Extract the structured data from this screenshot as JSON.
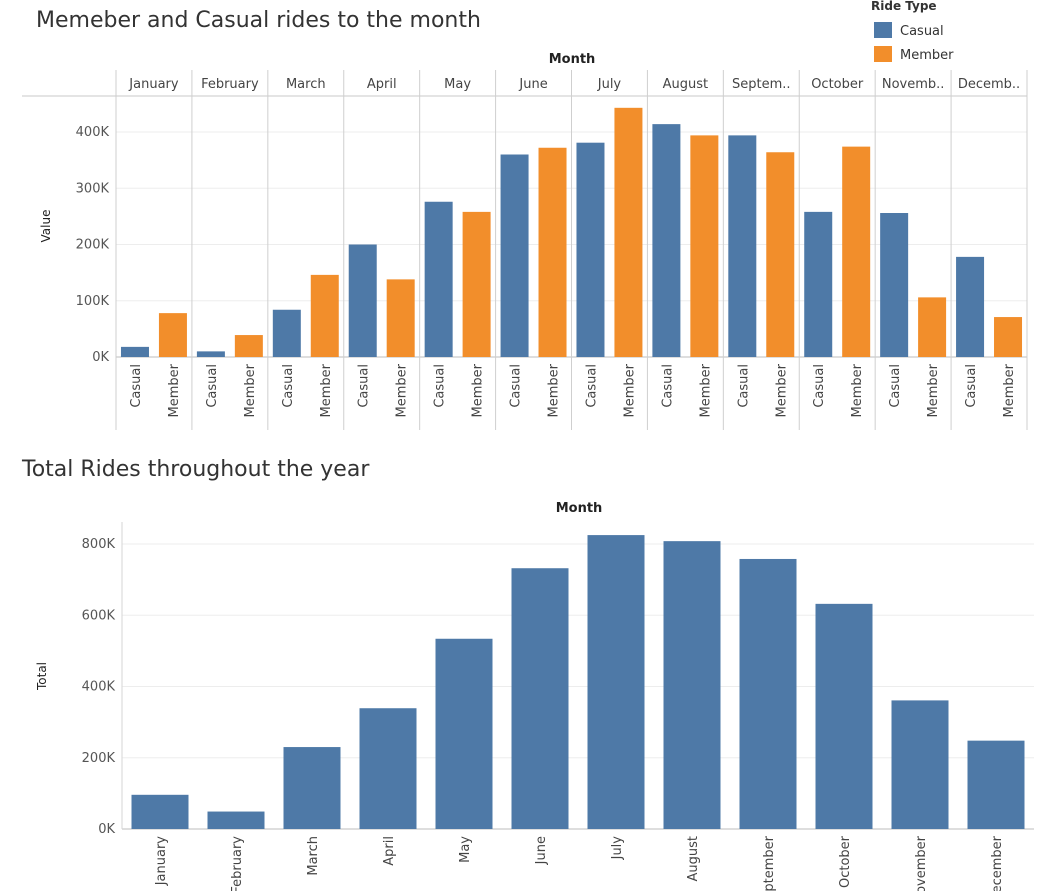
{
  "chart_data": [
    {
      "type": "bar",
      "title": "Memeber and Casual rides to the month",
      "column_header": "Month",
      "ylabel": "Value",
      "categories": [
        "January",
        "February",
        "March",
        "April",
        "May",
        "June",
        "July",
        "August",
        "Septem..",
        "October",
        "Novemb..",
        "Decemb.."
      ],
      "subcategories": [
        "Casual",
        "Member"
      ],
      "yticks": [
        0,
        100000,
        200000,
        300000,
        400000
      ],
      "ytick_labels": [
        "0K",
        "100K",
        "200K",
        "300K",
        "400K"
      ],
      "ylim": [
        0,
        450000
      ],
      "legend": {
        "title": "Ride Type",
        "position": "top-right"
      },
      "grid": true,
      "colors": {
        "Casual": "#4e79a7",
        "Member": "#f28e2b"
      },
      "series": [
        {
          "name": "Casual",
          "values": [
            18000,
            10000,
            84000,
            200000,
            276000,
            360000,
            381000,
            414000,
            394000,
            258000,
            256000,
            178000
          ]
        },
        {
          "name": "Member",
          "values": [
            78000,
            39000,
            146000,
            138000,
            258000,
            372000,
            443000,
            394000,
            364000,
            374000,
            106000,
            71000
          ]
        }
      ]
    },
    {
      "type": "bar",
      "title": "Total Rides throughout the year",
      "column_header": "Month",
      "ylabel": "Total",
      "categories": [
        "January",
        "February",
        "March",
        "April",
        "May",
        "June",
        "July",
        "August",
        "September",
        "October",
        "November",
        "December"
      ],
      "yticks": [
        0,
        200000,
        400000,
        600000,
        800000
      ],
      "ytick_labels": [
        "0K",
        "200K",
        "400K",
        "600K",
        "800K"
      ],
      "ylim": [
        0,
        870000
      ],
      "grid": true,
      "color": "#4e79a7",
      "values": [
        96000,
        49000,
        230000,
        339000,
        534000,
        732000,
        825000,
        808000,
        758000,
        632000,
        361000,
        248000
      ]
    }
  ]
}
